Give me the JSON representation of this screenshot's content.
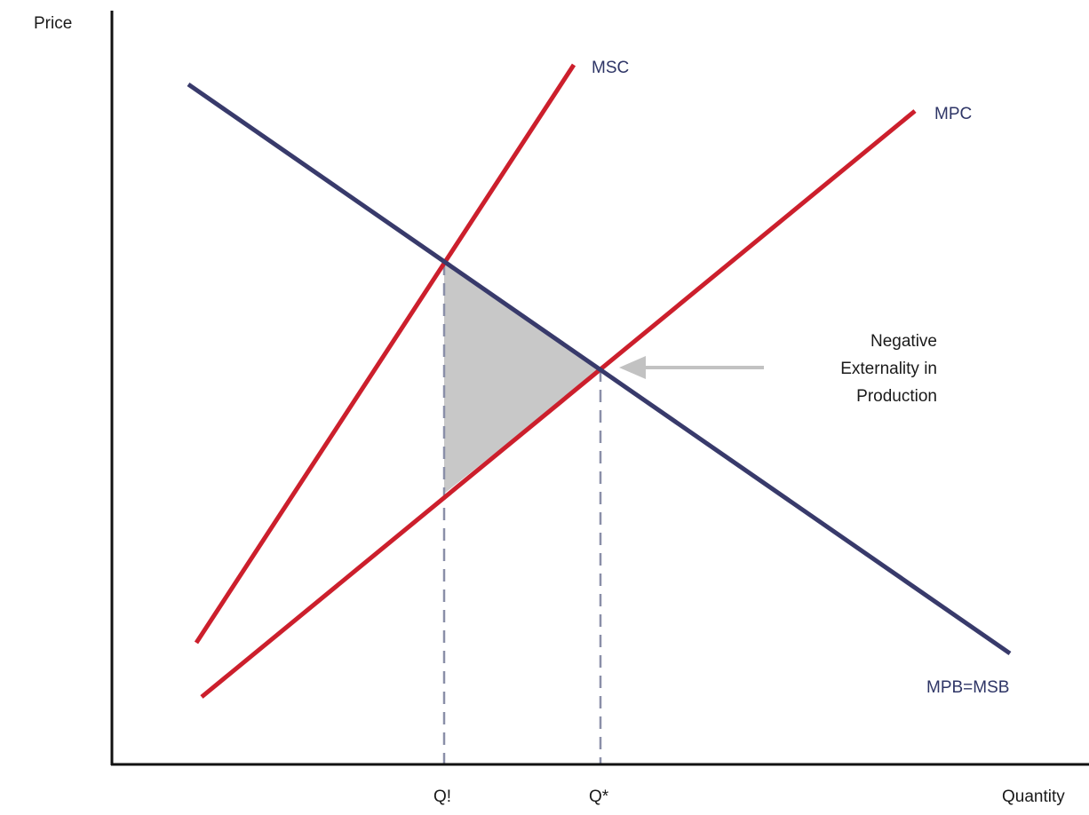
{
  "axes": {
    "y_label": "Price",
    "x_label": "Quantity"
  },
  "curves": {
    "msc": {
      "label": "MSC",
      "color": "#cc1f2c"
    },
    "mpc": {
      "label": "MPC",
      "color": "#cc1f2c"
    },
    "demand": {
      "label": "MPB=MSB",
      "color": "#383a6b"
    }
  },
  "quantities": {
    "q_social": "Q!",
    "q_private": "Q*"
  },
  "annotation": {
    "line1": "Negative",
    "line2": "Externality in",
    "line3": "Production"
  },
  "colors": {
    "deadweight_fill": "#c8c8c8",
    "guide_dash": "#8a8fa8",
    "arrow": "#c2c2c2",
    "axis": "#111111"
  }
}
